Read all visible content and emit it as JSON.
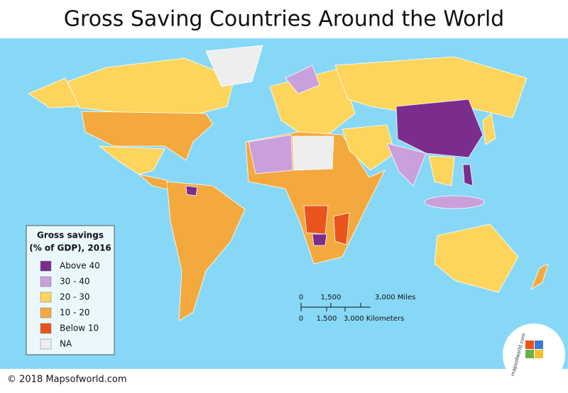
{
  "header": {
    "title": "Gross Saving Countries Around the World"
  },
  "legend": {
    "title_line1": "Gross savings",
    "title_line2": "(% of GDP), 2016",
    "items": [
      {
        "label": "Above 40",
        "color": "#7b2d8e"
      },
      {
        "label": "30 - 40",
        "color": "#c9a0dc"
      },
      {
        "label": "20 - 30",
        "color": "#fdd55c"
      },
      {
        "label": "10 - 20",
        "color": "#f4a93e"
      },
      {
        "label": "Below 10",
        "color": "#e8541c"
      },
      {
        "label": "NA",
        "color": "#eeeeee"
      }
    ]
  },
  "scale_bar": {
    "miles": [
      "0",
      "1,500",
      "3,000 Miles"
    ],
    "kilometers": [
      "0",
      "1,500",
      "3,000 Kilometers"
    ]
  },
  "footer": {
    "copyright": "© 2018 Mapsofworld.com"
  },
  "logo": {
    "text": "mapsofworld.com"
  }
}
